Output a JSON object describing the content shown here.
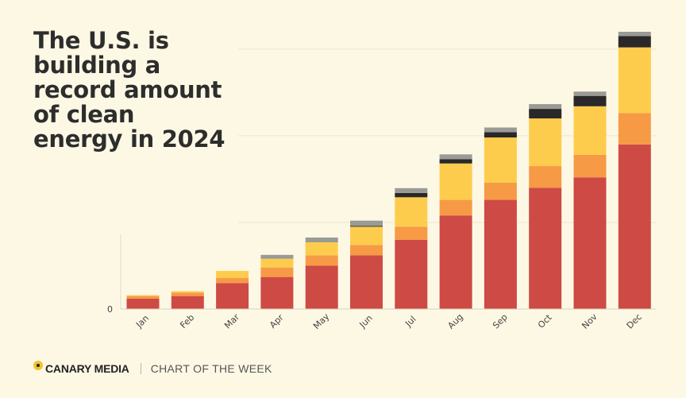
{
  "headline": {
    "lines": [
      "The U.S. is",
      "building a",
      "record amount",
      "of clean",
      "energy in 2024"
    ]
  },
  "footer": {
    "brand": "CANARY MEDIA",
    "tagline": "CHART OF THE WEEK"
  },
  "chart_data": {
    "type": "bar",
    "stacked": true,
    "title": "The U.S. is building a record amount of clean energy in 2024",
    "categories": [
      "Jan",
      "Feb",
      "Mar",
      "Apr",
      "May",
      "Jun",
      "Jul",
      "Aug",
      "Sep",
      "Oct",
      "Nov",
      "Dec"
    ],
    "series": [
      {
        "color": "#cd4a45",
        "values": [
          1.2,
          1.5,
          3.0,
          3.7,
          5.0,
          6.2,
          8.0,
          10.8,
          12.6,
          14.0,
          15.2,
          19.0
        ]
      },
      {
        "color": "#f79a45",
        "values": [
          0.3,
          0.4,
          0.6,
          1.1,
          1.2,
          1.2,
          1.5,
          1.8,
          2.0,
          2.5,
          2.6,
          3.6
        ]
      },
      {
        "color": "#fecc4d",
        "values": [
          0.1,
          0.15,
          0.8,
          1.0,
          1.5,
          2.1,
          3.4,
          4.2,
          5.2,
          5.5,
          5.6,
          7.6
        ]
      },
      {
        "color": "#2a2828",
        "values": [
          0,
          0,
          0,
          0,
          0,
          0.1,
          0.5,
          0.5,
          0.6,
          1.1,
          1.2,
          1.3
        ]
      },
      {
        "color": "#9a9a96",
        "values": [
          0,
          0,
          0,
          0.45,
          0.55,
          0.6,
          0.55,
          0.55,
          0.55,
          0.55,
          0.5,
          0.5
        ]
      }
    ],
    "ylim": [
      0,
      32
    ],
    "yticks": [
      0
    ],
    "gridlines": [
      10,
      20,
      30
    ],
    "grid": true,
    "legend": false
  }
}
